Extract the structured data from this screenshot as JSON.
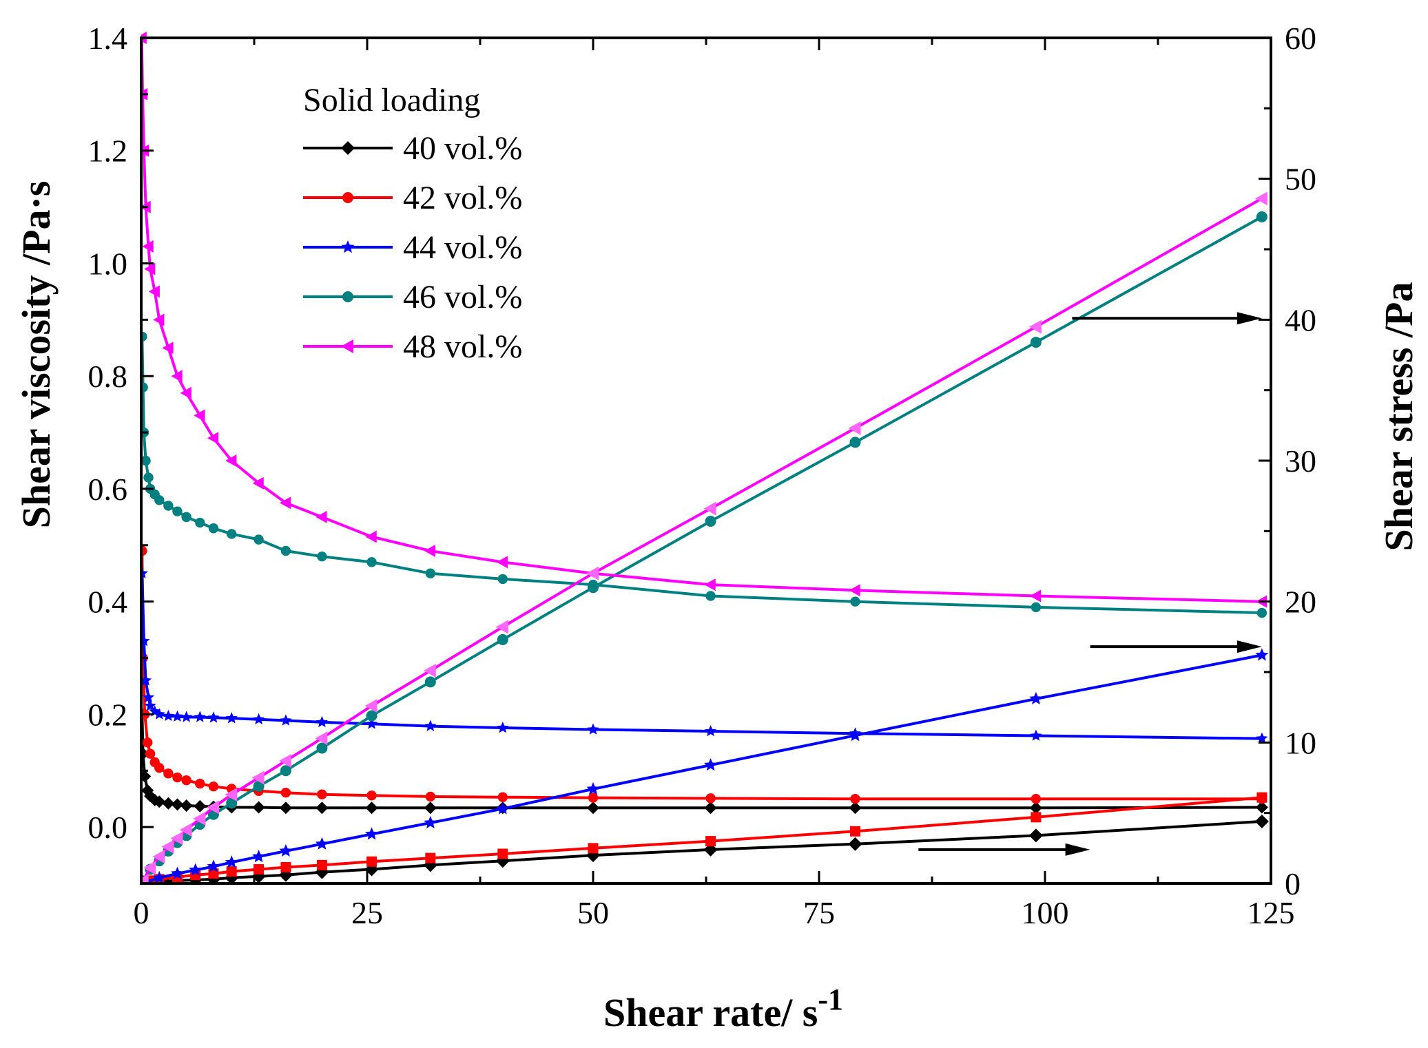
{
  "chart_data": {
    "type": "line",
    "xlabel": "Shear rate/ s",
    "xlabel_sup": "-1",
    "ylabel_left": "Shear viscosity /Pa·s",
    "ylabel_right": "Shear stress /Pa",
    "xlim": [
      0,
      125
    ],
    "ylim_left": [
      -0.1,
      1.4
    ],
    "ylim_right": [
      0,
      60
    ],
    "x_ticks": [
      0,
      25,
      50,
      75,
      100,
      125
    ],
    "y_left_ticks": [
      0.0,
      0.2,
      0.4,
      0.6,
      0.8,
      1.0,
      1.2,
      1.4
    ],
    "y_left_tick_labels": [
      "0.0",
      "0.2",
      "0.4",
      "0.6",
      "0.8",
      "1.0",
      "1.2",
      "1.4"
    ],
    "y_right_ticks": [
      0,
      10,
      20,
      30,
      40,
      50,
      60
    ],
    "legend_title": "Solid loading",
    "legend_position": "top-left",
    "series": [
      {
        "name": "40 vol.%",
        "color": "#000000",
        "marker": "diamond",
        "viscosity": [
          [
            0.1,
            0.2
          ],
          [
            0.2,
            0.13
          ],
          [
            0.4,
            0.09
          ],
          [
            0.7,
            0.065
          ],
          [
            1,
            0.055
          ],
          [
            1.5,
            0.048
          ],
          [
            2,
            0.045
          ],
          [
            3,
            0.042
          ],
          [
            4,
            0.04
          ],
          [
            5,
            0.038
          ],
          [
            6.5,
            0.037
          ],
          [
            8,
            0.036
          ],
          [
            10,
            0.035
          ],
          [
            13,
            0.035
          ],
          [
            16,
            0.034
          ],
          [
            20,
            0.034
          ],
          [
            25.5,
            0.034
          ],
          [
            32,
            0.034
          ],
          [
            40,
            0.034
          ],
          [
            50,
            0.034
          ],
          [
            63,
            0.034
          ],
          [
            79,
            0.034
          ],
          [
            99,
            0.034
          ],
          [
            124,
            0.035
          ]
        ],
        "stress": [
          [
            0.2,
            0.1
          ],
          [
            2,
            0.15
          ],
          [
            4,
            0.2
          ],
          [
            6,
            0.25
          ],
          [
            8,
            0.3
          ],
          [
            10,
            0.4
          ],
          [
            13,
            0.5
          ],
          [
            16,
            0.6
          ],
          [
            20,
            0.8
          ],
          [
            25.5,
            1.0
          ],
          [
            32,
            1.3
          ],
          [
            40,
            1.6
          ],
          [
            50,
            2.0
          ],
          [
            63,
            2.4
          ],
          [
            79,
            2.8
          ],
          [
            99,
            3.4
          ],
          [
            124,
            4.4
          ]
        ]
      },
      {
        "name": "42 vol.%",
        "color": "#ff0000",
        "marker": "circle",
        "viscosity": [
          [
            0.1,
            0.49
          ],
          [
            0.2,
            0.3
          ],
          [
            0.4,
            0.2
          ],
          [
            0.7,
            0.15
          ],
          [
            1,
            0.13
          ],
          [
            1.5,
            0.115
          ],
          [
            2,
            0.105
          ],
          [
            3,
            0.095
          ],
          [
            4,
            0.088
          ],
          [
            5,
            0.083
          ],
          [
            6.5,
            0.077
          ],
          [
            8,
            0.072
          ],
          [
            10,
            0.068
          ],
          [
            13,
            0.064
          ],
          [
            16,
            0.061
          ],
          [
            20,
            0.058
          ],
          [
            25.5,
            0.056
          ],
          [
            32,
            0.054
          ],
          [
            40,
            0.053
          ],
          [
            50,
            0.052
          ],
          [
            63,
            0.051
          ],
          [
            79,
            0.05
          ],
          [
            99,
            0.05
          ],
          [
            124,
            0.05
          ]
        ],
        "stress": [
          [
            0.2,
            0.05
          ],
          [
            1,
            0.2
          ],
          [
            2,
            0.3
          ],
          [
            4,
            0.45
          ],
          [
            6,
            0.6
          ],
          [
            8,
            0.7
          ],
          [
            10,
            0.85
          ],
          [
            13,
            1.0
          ],
          [
            16,
            1.15
          ],
          [
            20,
            1.3
          ],
          [
            25.5,
            1.55
          ],
          [
            32,
            1.8
          ],
          [
            40,
            2.1
          ],
          [
            50,
            2.5
          ],
          [
            63,
            3.0
          ],
          [
            79,
            3.7
          ],
          [
            99,
            4.7
          ],
          [
            124,
            6.1
          ]
        ]
      },
      {
        "name": "44 vol.%",
        "color": "#0000ff",
        "marker": "star",
        "viscosity": [
          [
            0.1,
            0.45
          ],
          [
            0.3,
            0.33
          ],
          [
            0.5,
            0.26
          ],
          [
            0.8,
            0.23
          ],
          [
            1,
            0.215
          ],
          [
            1.5,
            0.205
          ],
          [
            2,
            0.2
          ],
          [
            3,
            0.197
          ],
          [
            4,
            0.196
          ],
          [
            5,
            0.195
          ],
          [
            6.5,
            0.195
          ],
          [
            8,
            0.194
          ],
          [
            10,
            0.193
          ],
          [
            13,
            0.191
          ],
          [
            16,
            0.189
          ],
          [
            20,
            0.186
          ],
          [
            25.5,
            0.183
          ],
          [
            32,
            0.179
          ],
          [
            40,
            0.176
          ],
          [
            50,
            0.173
          ],
          [
            63,
            0.17
          ],
          [
            79,
            0.166
          ],
          [
            99,
            0.162
          ],
          [
            124,
            0.157
          ]
        ],
        "stress": [
          [
            0.5,
            0.1
          ],
          [
            2,
            0.4
          ],
          [
            4,
            0.7
          ],
          [
            6,
            0.95
          ],
          [
            8,
            1.2
          ],
          [
            10,
            1.5
          ],
          [
            13,
            1.9
          ],
          [
            16,
            2.3
          ],
          [
            20,
            2.8
          ],
          [
            25.5,
            3.5
          ],
          [
            32,
            4.3
          ],
          [
            40,
            5.3
          ],
          [
            50,
            6.7
          ],
          [
            63,
            8.4
          ],
          [
            79,
            10.5
          ],
          [
            99,
            13.1
          ],
          [
            124,
            16.2
          ]
        ]
      },
      {
        "name": "46 vol.%",
        "color": "#008080",
        "marker": "circle",
        "viscosity": [
          [
            0.1,
            0.87
          ],
          [
            0.2,
            0.78
          ],
          [
            0.3,
            0.7
          ],
          [
            0.5,
            0.65
          ],
          [
            0.8,
            0.62
          ],
          [
            1,
            0.6
          ],
          [
            1.5,
            0.59
          ],
          [
            2,
            0.58
          ],
          [
            3,
            0.57
          ],
          [
            4,
            0.56
          ],
          [
            5,
            0.55
          ],
          [
            6.5,
            0.54
          ],
          [
            8,
            0.53
          ],
          [
            10,
            0.52
          ],
          [
            13,
            0.51
          ],
          [
            16,
            0.49
          ],
          [
            20,
            0.48
          ],
          [
            25.5,
            0.47
          ],
          [
            32,
            0.45
          ],
          [
            40,
            0.44
          ],
          [
            50,
            0.43
          ],
          [
            63,
            0.41
          ],
          [
            79,
            0.4
          ],
          [
            99,
            0.39
          ],
          [
            124,
            0.38
          ]
        ],
        "stress": [
          [
            0.2,
            0.1
          ],
          [
            1,
            1.0
          ],
          [
            2,
            1.6
          ],
          [
            3,
            2.3
          ],
          [
            4,
            2.9
          ],
          [
            5,
            3.4
          ],
          [
            6.5,
            4.2
          ],
          [
            8,
            4.9
          ],
          [
            10,
            5.7
          ],
          [
            13,
            6.9
          ],
          [
            16,
            8.0
          ],
          [
            20,
            9.6
          ],
          [
            25.5,
            11.9
          ],
          [
            32,
            14.3
          ],
          [
            40,
            17.3
          ],
          [
            50,
            21.0
          ],
          [
            63,
            25.7
          ],
          [
            79,
            31.3
          ],
          [
            99,
            38.4
          ],
          [
            124,
            47.3
          ]
        ]
      },
      {
        "name": "48 vol.%",
        "color": "#ff00ff",
        "marker": "triangle-left",
        "viscosity": [
          [
            0.05,
            1.4
          ],
          [
            0.15,
            1.3
          ],
          [
            0.3,
            1.2
          ],
          [
            0.5,
            1.1
          ],
          [
            0.8,
            1.03
          ],
          [
            1,
            0.99
          ],
          [
            1.5,
            0.95
          ],
          [
            2,
            0.9
          ],
          [
            3,
            0.85
          ],
          [
            4,
            0.8
          ],
          [
            5,
            0.77
          ],
          [
            6.5,
            0.73
          ],
          [
            8,
            0.69
          ],
          [
            10,
            0.65
          ],
          [
            13,
            0.61
          ],
          [
            16,
            0.575
          ],
          [
            20,
            0.55
          ],
          [
            25.5,
            0.515
          ],
          [
            32,
            0.49
          ],
          [
            40,
            0.47
          ],
          [
            50,
            0.45
          ],
          [
            63,
            0.43
          ],
          [
            79,
            0.42
          ],
          [
            99,
            0.41
          ],
          [
            124,
            0.4
          ]
        ],
        "stress": [
          [
            0.2,
            0.2
          ],
          [
            1,
            1.1
          ],
          [
            2,
            1.9
          ],
          [
            3,
            2.6
          ],
          [
            4,
            3.2
          ],
          [
            5,
            3.8
          ],
          [
            6.5,
            4.6
          ],
          [
            8,
            5.4
          ],
          [
            10,
            6.3
          ],
          [
            13,
            7.5
          ],
          [
            16,
            8.7
          ],
          [
            20,
            10.3
          ],
          [
            25.5,
            12.6
          ],
          [
            32,
            15.1
          ],
          [
            40,
            18.2
          ],
          [
            50,
            22.0
          ],
          [
            63,
            26.6
          ],
          [
            79,
            32.3
          ],
          [
            99,
            39.5
          ],
          [
            124,
            48.6
          ]
        ]
      }
    ],
    "annotations": [
      {
        "type": "arrow",
        "direction": "right-axis",
        "from_x": 103,
        "to_x": 124,
        "y_right": 40.1
      },
      {
        "type": "arrow",
        "direction": "right-axis",
        "from_x": 105,
        "to_x": 124,
        "y_right": 16.8
      },
      {
        "type": "arrow",
        "direction": "right-axis",
        "from_x": 86,
        "to_x": 105,
        "y_right": 2.4
      }
    ]
  }
}
